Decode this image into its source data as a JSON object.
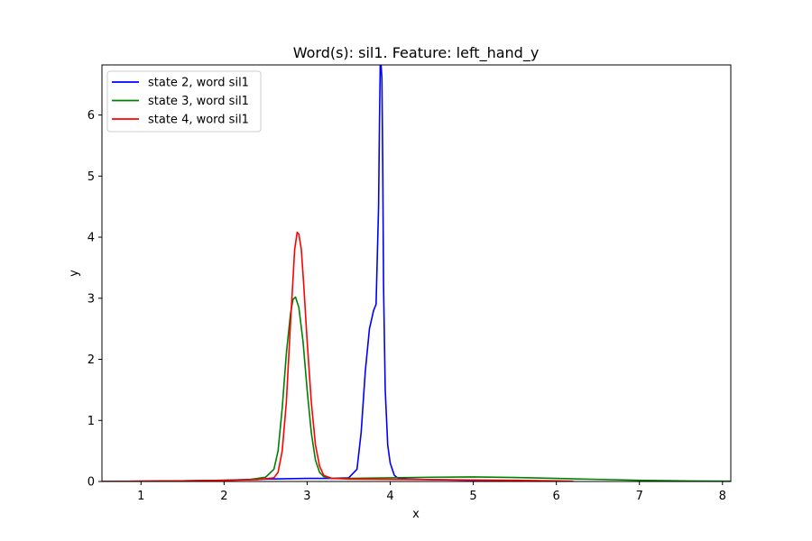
{
  "chart_data": {
    "type": "line",
    "title": "Word(s): sil1. Feature: left_hand_y",
    "xlabel": "x",
    "ylabel": "y",
    "xlim": [
      0.53,
      8.1
    ],
    "ylim": [
      0,
      6.82
    ],
    "xticks": [
      "1",
      "2",
      "3",
      "4",
      "5",
      "6",
      "7",
      "8"
    ],
    "yticks": [
      "0",
      "1",
      "2",
      "3",
      "4",
      "5",
      "6"
    ],
    "legend_position": "upper-left",
    "grid": false,
    "series": [
      {
        "name": "state 2, word sil1",
        "color": "#0000ff",
        "x": [
          0.53,
          1.0,
          1.5,
          2.0,
          2.5,
          3.0,
          3.3,
          3.5,
          3.6,
          3.65,
          3.7,
          3.75,
          3.8,
          3.83,
          3.86,
          3.87,
          3.88,
          3.89,
          3.9,
          3.91,
          3.92,
          3.94,
          3.97,
          4.0,
          4.05,
          4.1,
          4.2,
          4.5,
          5.0,
          5.5,
          6.0
        ],
        "y": [
          0.0,
          0.005,
          0.01,
          0.02,
          0.04,
          0.05,
          0.05,
          0.06,
          0.2,
          0.8,
          1.8,
          2.5,
          2.8,
          2.9,
          4.5,
          5.8,
          6.82,
          6.82,
          6.6,
          5.2,
          3.2,
          1.5,
          0.6,
          0.3,
          0.1,
          0.05,
          0.04,
          0.03,
          0.02,
          0.01,
          0.0
        ]
      },
      {
        "name": "state 3, word sil1",
        "color": "#008000",
        "x": [
          0.53,
          1.0,
          1.5,
          2.0,
          2.3,
          2.5,
          2.6,
          2.65,
          2.7,
          2.75,
          2.8,
          2.83,
          2.86,
          2.9,
          2.95,
          3.0,
          3.05,
          3.1,
          3.15,
          3.2,
          3.3,
          3.5,
          4.0,
          4.5,
          5.0,
          5.5,
          6.0,
          6.5,
          7.0,
          7.5,
          8.1
        ],
        "y": [
          0.0,
          0.005,
          0.01,
          0.02,
          0.03,
          0.07,
          0.2,
          0.5,
          1.2,
          2.1,
          2.75,
          2.98,
          3.02,
          2.85,
          2.3,
          1.5,
          0.8,
          0.35,
          0.15,
          0.08,
          0.05,
          0.05,
          0.06,
          0.07,
          0.075,
          0.065,
          0.05,
          0.035,
          0.02,
          0.01,
          0.005
        ]
      },
      {
        "name": "state 4, word sil1",
        "color": "#ff0000",
        "x": [
          0.53,
          1.0,
          1.5,
          2.0,
          2.4,
          2.6,
          2.65,
          2.7,
          2.75,
          2.8,
          2.85,
          2.88,
          2.9,
          2.93,
          2.96,
          3.0,
          3.05,
          3.1,
          3.15,
          3.2,
          3.3,
          3.5,
          4.0,
          4.5,
          5.0,
          5.5,
          6.0,
          6.2
        ],
        "y": [
          0.0,
          0.005,
          0.01,
          0.02,
          0.03,
          0.06,
          0.15,
          0.5,
          1.3,
          2.6,
          3.8,
          4.08,
          4.05,
          3.8,
          3.2,
          2.3,
          1.3,
          0.6,
          0.25,
          0.1,
          0.05,
          0.04,
          0.035,
          0.03,
          0.025,
          0.02,
          0.01,
          0.005
        ]
      }
    ]
  }
}
